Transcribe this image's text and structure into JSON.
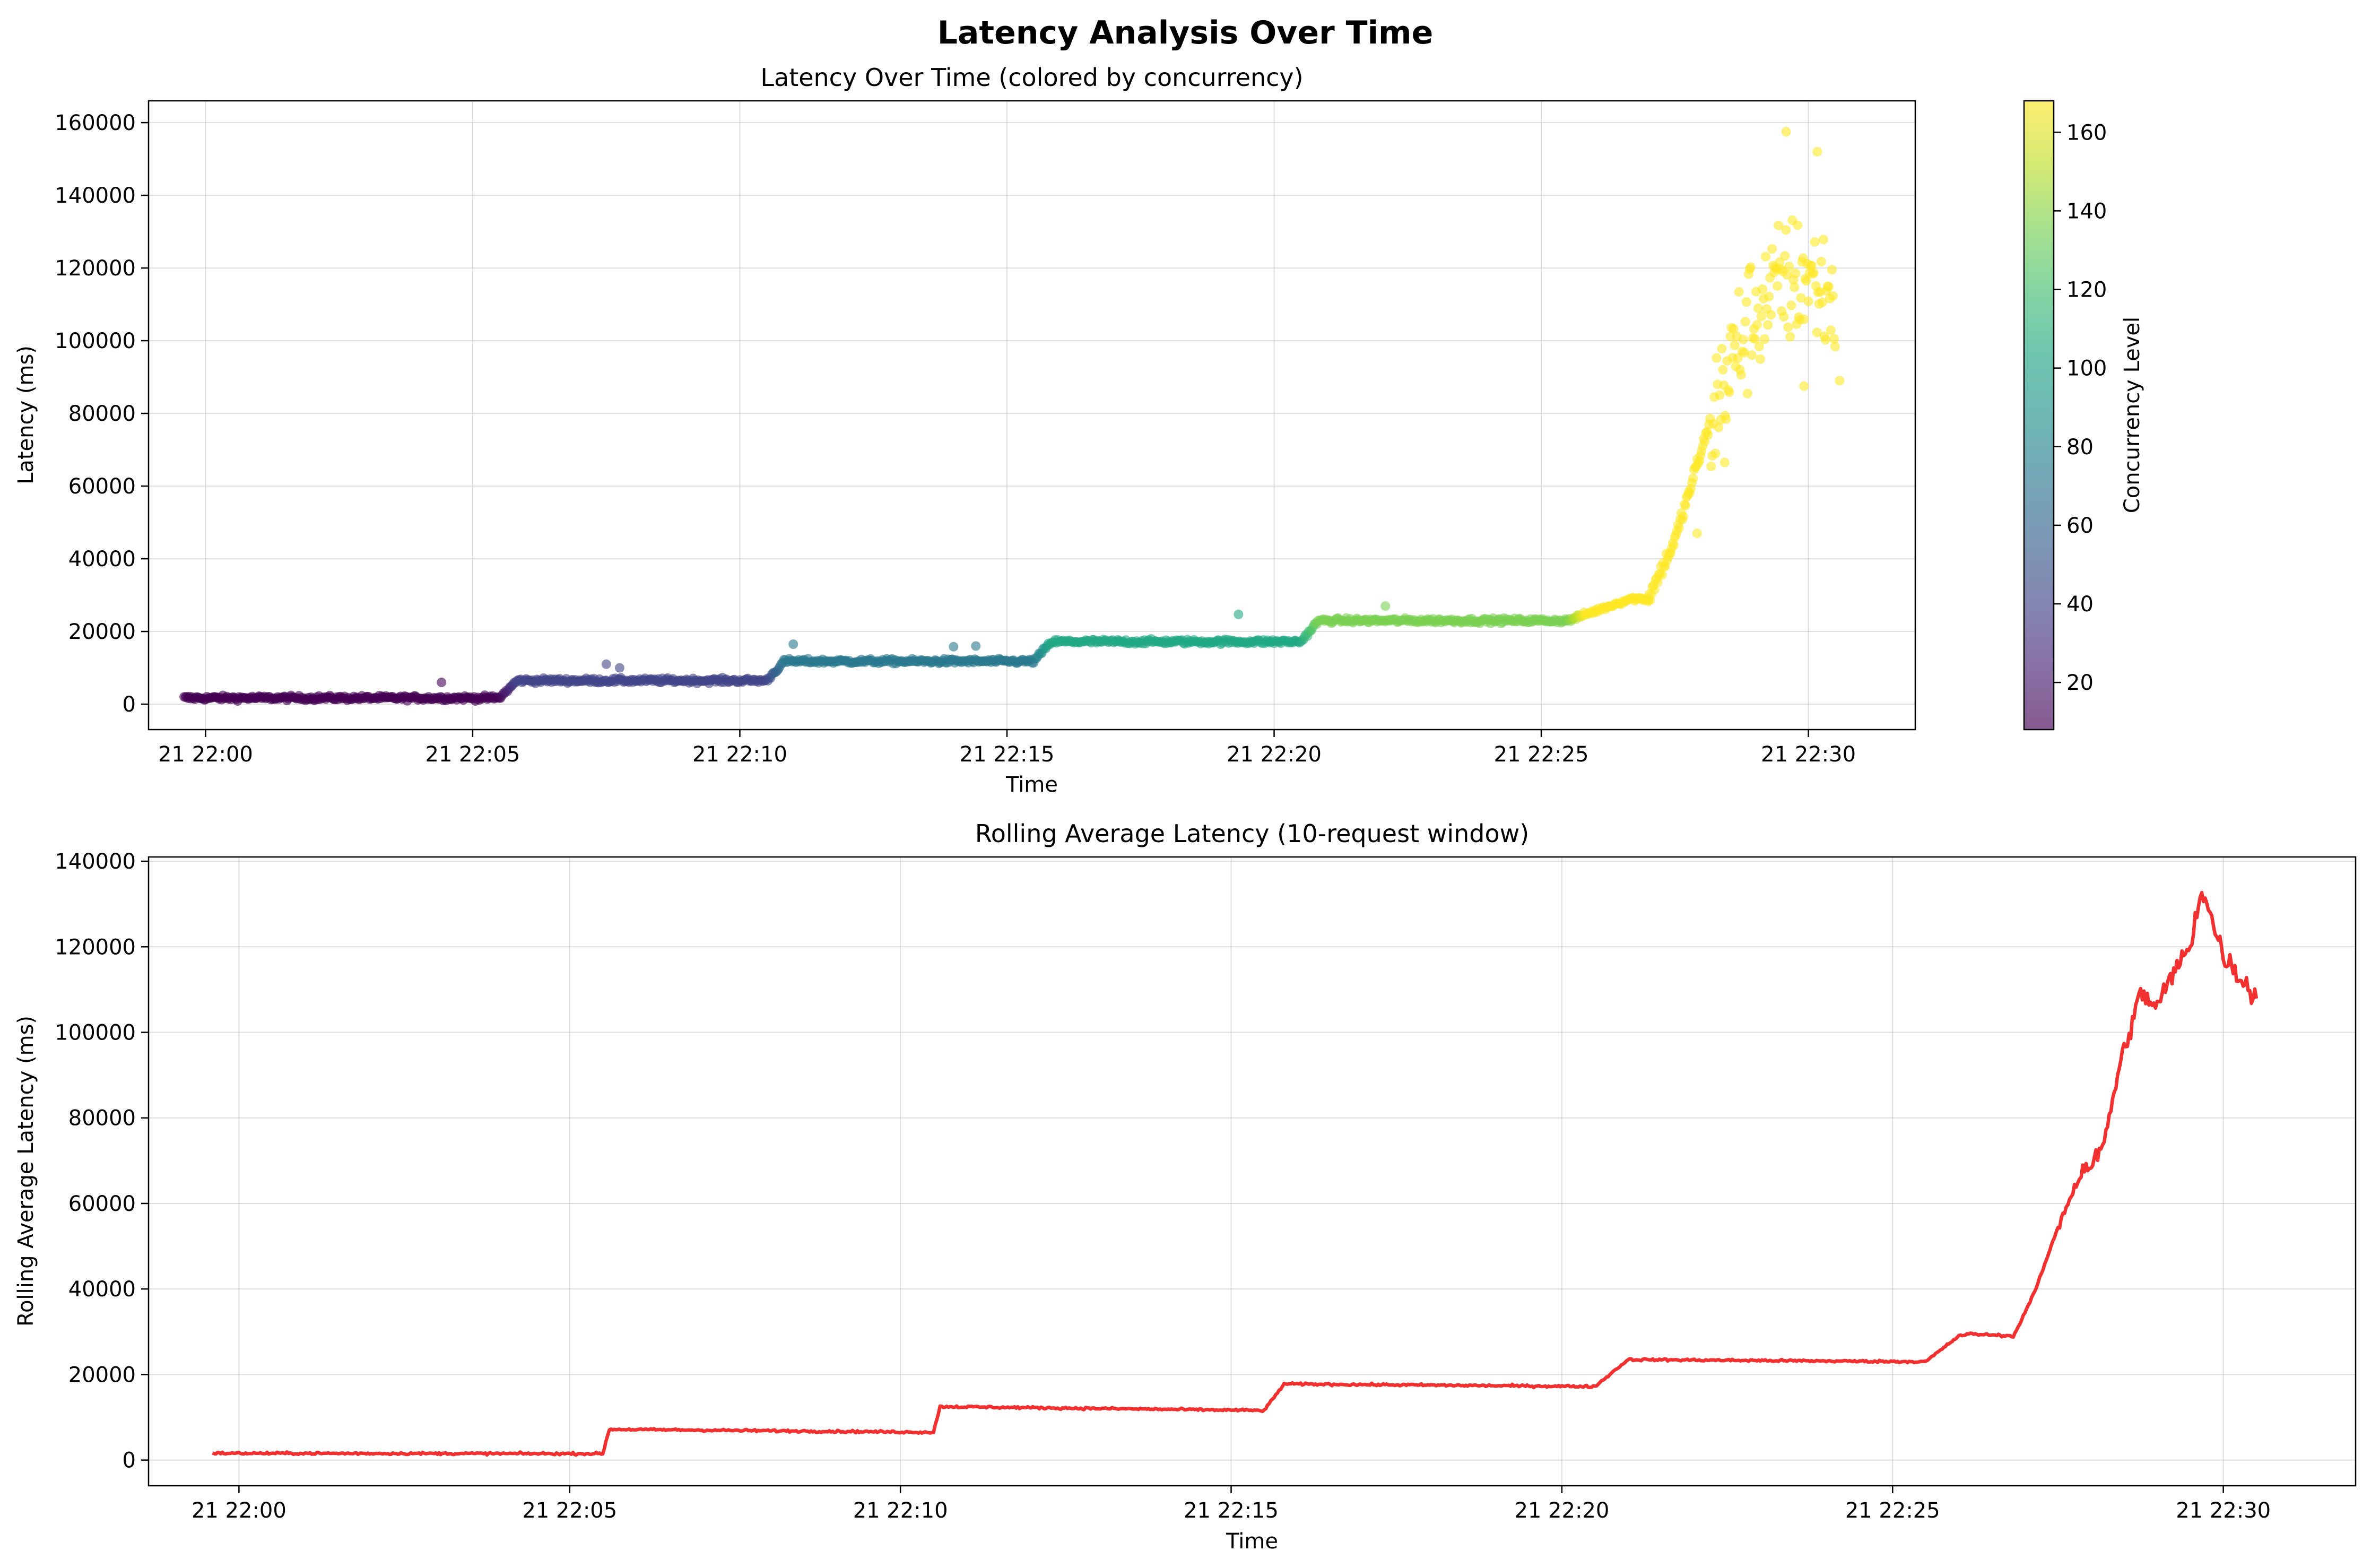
{
  "figure": {
    "suptitle": "Latency Analysis Over Time"
  },
  "chart_data": [
    {
      "type": "scatter",
      "title": "Latency Over Time (colored by concurrency)",
      "xlabel": "Time",
      "ylabel": "Latency (ms)",
      "xlim": [
        "21 21:58:56",
        "21 22:32:00"
      ],
      "ylim": [
        -7000,
        166000
      ],
      "xticks": [
        "21 22:00",
        "21 22:05",
        "21 22:10",
        "21 22:15",
        "21 22:20",
        "21 22:25",
        "21 22:30"
      ],
      "yticks": [
        0,
        20000,
        40000,
        60000,
        80000,
        100000,
        120000,
        140000,
        160000
      ],
      "grid": true,
      "colormap": "viridis",
      "colorbar": {
        "label": "Concurrency Level",
        "range": [
          8,
          168
        ],
        "ticks": [
          20,
          40,
          60,
          80,
          100,
          120,
          140,
          160
        ]
      },
      "phases": [
        {
          "start": "21 21:59:36",
          "end": "21 22:05:30",
          "latency": 1700,
          "concurrency": 8
        },
        {
          "start": "21 22:05:30",
          "end": "21 22:10:30",
          "latency": 6500,
          "concurrency": 40
        },
        {
          "start": "21 22:10:30",
          "end": "21 22:15:30",
          "latency": 11800,
          "concurrency": 72
        },
        {
          "start": "21 22:15:30",
          "end": "21 22:20:30",
          "latency": 17200,
          "concurrency": 104
        },
        {
          "start": "21 22:20:30",
          "end": "21 22:25:30",
          "latency": 23000,
          "concurrency": 136
        },
        {
          "start": "21 22:25:30",
          "end": "21 22:30:30",
          "latency": 29000,
          "concurrency": 168
        }
      ],
      "ramp": [
        {
          "time": "21 22:27:00",
          "latency": 29000
        },
        {
          "time": "21 22:27:30",
          "latency": 45000
        },
        {
          "time": "21 22:28:00",
          "latency": 70000
        },
        {
          "time": "21 22:28:30",
          "latency": 92000
        },
        {
          "time": "21 22:29:00",
          "latency": 108000
        },
        {
          "time": "21 22:29:30",
          "latency": 115000
        },
        {
          "time": "21 22:30:00",
          "latency": 118000
        },
        {
          "time": "21 22:30:30",
          "latency": 110000
        }
      ],
      "outliers": [
        {
          "time": "21 22:04:25",
          "latency": 6000,
          "concurrency": 8
        },
        {
          "time": "21 22:07:30",
          "latency": 11000,
          "concurrency": 40
        },
        {
          "time": "21 22:07:45",
          "latency": 10000,
          "concurrency": 40
        },
        {
          "time": "21 22:11:00",
          "latency": 16500,
          "concurrency": 72
        },
        {
          "time": "21 22:14:00",
          "latency": 15800,
          "concurrency": 72
        },
        {
          "time": "21 22:14:25",
          "latency": 16000,
          "concurrency": 72
        },
        {
          "time": "21 22:19:20",
          "latency": 24700,
          "concurrency": 104
        },
        {
          "time": "21 22:22:05",
          "latency": 27000,
          "concurrency": 136
        },
        {
          "time": "21 22:28:26",
          "latency": 66500,
          "concurrency": 168
        },
        {
          "time": "21 22:27:55",
          "latency": 47000,
          "concurrency": 168
        },
        {
          "time": "21 22:29:35",
          "latency": 157500,
          "concurrency": 168
        },
        {
          "time": "21 22:30:10",
          "latency": 152000,
          "concurrency": 168
        },
        {
          "time": "21 22:29:55",
          "latency": 87500,
          "concurrency": 168
        },
        {
          "time": "21 22:30:35",
          "latency": 89000,
          "concurrency": 168
        }
      ]
    },
    {
      "type": "line",
      "title": "Rolling Average Latency (10-request window)",
      "xlabel": "Time",
      "ylabel": "Rolling Average Latency (ms)",
      "xlim": [
        "21 21:58:38",
        "21 22:32:00"
      ],
      "ylim": [
        -6000,
        141000
      ],
      "xticks": [
        "21 22:00",
        "21 22:05",
        "21 22:10",
        "21 22:15",
        "21 22:20",
        "21 22:25",
        "21 22:30"
      ],
      "yticks": [
        0,
        20000,
        40000,
        60000,
        80000,
        100000,
        120000,
        140000
      ],
      "grid": true,
      "color": "#f23030",
      "series": [
        {
          "x": [
            "21 21:59:36",
            "21 22:05:30",
            "21 22:05:36",
            "21 22:10:30",
            "21 22:10:36",
            "21 22:15:30",
            "21 22:15:48",
            "21 22:20:30",
            "21 22:21:00",
            "21 22:25:30",
            "21 22:26:00",
            "21 22:26:10",
            "21 22:26:50",
            "21 22:27:10",
            "21 22:27:35",
            "21 22:27:50",
            "21 22:28:10",
            "21 22:28:20",
            "21 22:28:30",
            "21 22:28:45",
            "21 22:29:00",
            "21 22:29:15",
            "21 22:29:30",
            "21 22:29:40",
            "21 22:30:00",
            "21 22:30:30"
          ],
          "y": [
            1600,
            1500,
            7200,
            6500,
            12500,
            11600,
            17800,
            17200,
            23500,
            23000,
            29000,
            29500,
            29000,
            40000,
            58000,
            67000,
            72000,
            85000,
            96000,
            109000,
            106000,
            114000,
            120000,
            134000,
            118000,
            108000
          ]
        }
      ]
    }
  ]
}
